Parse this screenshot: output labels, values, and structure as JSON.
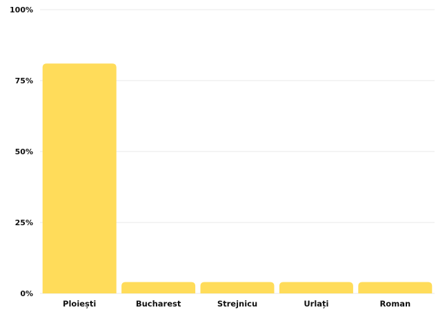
{
  "chart_data": {
    "type": "bar",
    "title": "",
    "xlabel": "",
    "ylabel": "",
    "categories": [
      "Ploiești",
      "Bucharest",
      "Strejnicu",
      "Urlați",
      "Roman"
    ],
    "values": [
      81,
      4,
      4,
      4,
      4
    ],
    "ylim": [
      0,
      100
    ],
    "yticks": [
      0,
      25,
      50,
      75,
      100
    ],
    "ytick_labels": [
      "0%",
      "25%",
      "50%",
      "75%",
      "100%"
    ],
    "grid": true,
    "legend": "none",
    "bar_color": "#ffdc5a",
    "grid_color": "#e9e9e9",
    "text_color": "#111111"
  }
}
